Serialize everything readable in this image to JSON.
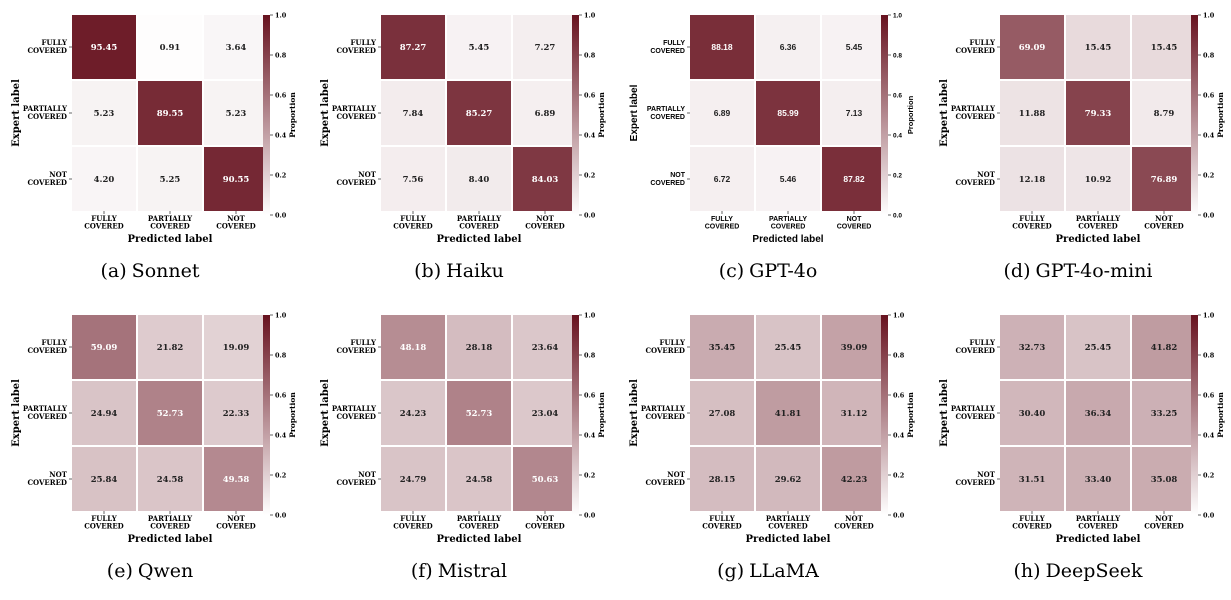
{
  "shared": {
    "xlabel": "Predicted label",
    "ylabel": "Expert label",
    "colorbar_label": "Proportion",
    "row_labels": [
      [
        "FULLY",
        "COVERED"
      ],
      [
        "PARTIALLY",
        "COVERED"
      ],
      [
        "NOT",
        "COVERED"
      ]
    ],
    "col_labels": [
      [
        "FULLY",
        "COVERED"
      ],
      [
        "PARTIALLY",
        "COVERED"
      ],
      [
        "NOT",
        "COVERED"
      ]
    ],
    "colorbar_ticks": [
      "0.0",
      "0.2",
      "0.4",
      "0.6",
      "0.8",
      "1.0"
    ],
    "colormap": {
      "low": "#ffffff",
      "high": "#67121f"
    }
  },
  "chart_data": [
    {
      "type": "heatmap",
      "caption_label": "(a)",
      "caption_name": "Sonnet",
      "values": [
        [
          95.45,
          0.91,
          3.64
        ],
        [
          5.23,
          89.55,
          5.23
        ],
        [
          4.2,
          5.25,
          90.55
        ]
      ]
    },
    {
      "type": "heatmap",
      "caption_label": "(b)",
      "caption_name": "Haiku",
      "values": [
        [
          87.27,
          5.45,
          7.27
        ],
        [
          7.84,
          85.27,
          6.89
        ],
        [
          7.56,
          8.4,
          84.03
        ]
      ]
    },
    {
      "type": "heatmap",
      "caption_label": "(c)",
      "caption_name": "GPT-4o",
      "font": "sans",
      "values": [
        [
          88.18,
          6.36,
          5.45
        ],
        [
          6.89,
          85.99,
          7.13
        ],
        [
          6.72,
          5.46,
          87.82
        ]
      ]
    },
    {
      "type": "heatmap",
      "caption_label": "(d)",
      "caption_name": "GPT-4o-mini",
      "values": [
        [
          69.09,
          15.45,
          15.45
        ],
        [
          11.88,
          79.33,
          8.79
        ],
        [
          12.18,
          10.92,
          76.89
        ]
      ]
    },
    {
      "type": "heatmap",
      "caption_label": "(e)",
      "caption_name": "Qwen",
      "values": [
        [
          59.09,
          21.82,
          19.09
        ],
        [
          24.94,
          52.73,
          22.33
        ],
        [
          25.84,
          24.58,
          49.58
        ]
      ]
    },
    {
      "type": "heatmap",
      "caption_label": "(f)",
      "caption_name": "Mistral",
      "values": [
        [
          48.18,
          28.18,
          23.64
        ],
        [
          24.23,
          52.73,
          23.04
        ],
        [
          24.79,
          24.58,
          50.63
        ]
      ]
    },
    {
      "type": "heatmap",
      "caption_label": "(g)",
      "caption_name": "LLaMA",
      "values": [
        [
          35.45,
          25.45,
          39.09
        ],
        [
          27.08,
          41.81,
          31.12
        ],
        [
          28.15,
          29.62,
          42.23
        ]
      ]
    },
    {
      "type": "heatmap",
      "caption_label": "(h)",
      "caption_name": "DeepSeek",
      "values": [
        [
          32.73,
          25.45,
          41.82
        ],
        [
          30.4,
          36.34,
          33.25
        ],
        [
          31.51,
          33.4,
          35.08
        ]
      ]
    }
  ]
}
